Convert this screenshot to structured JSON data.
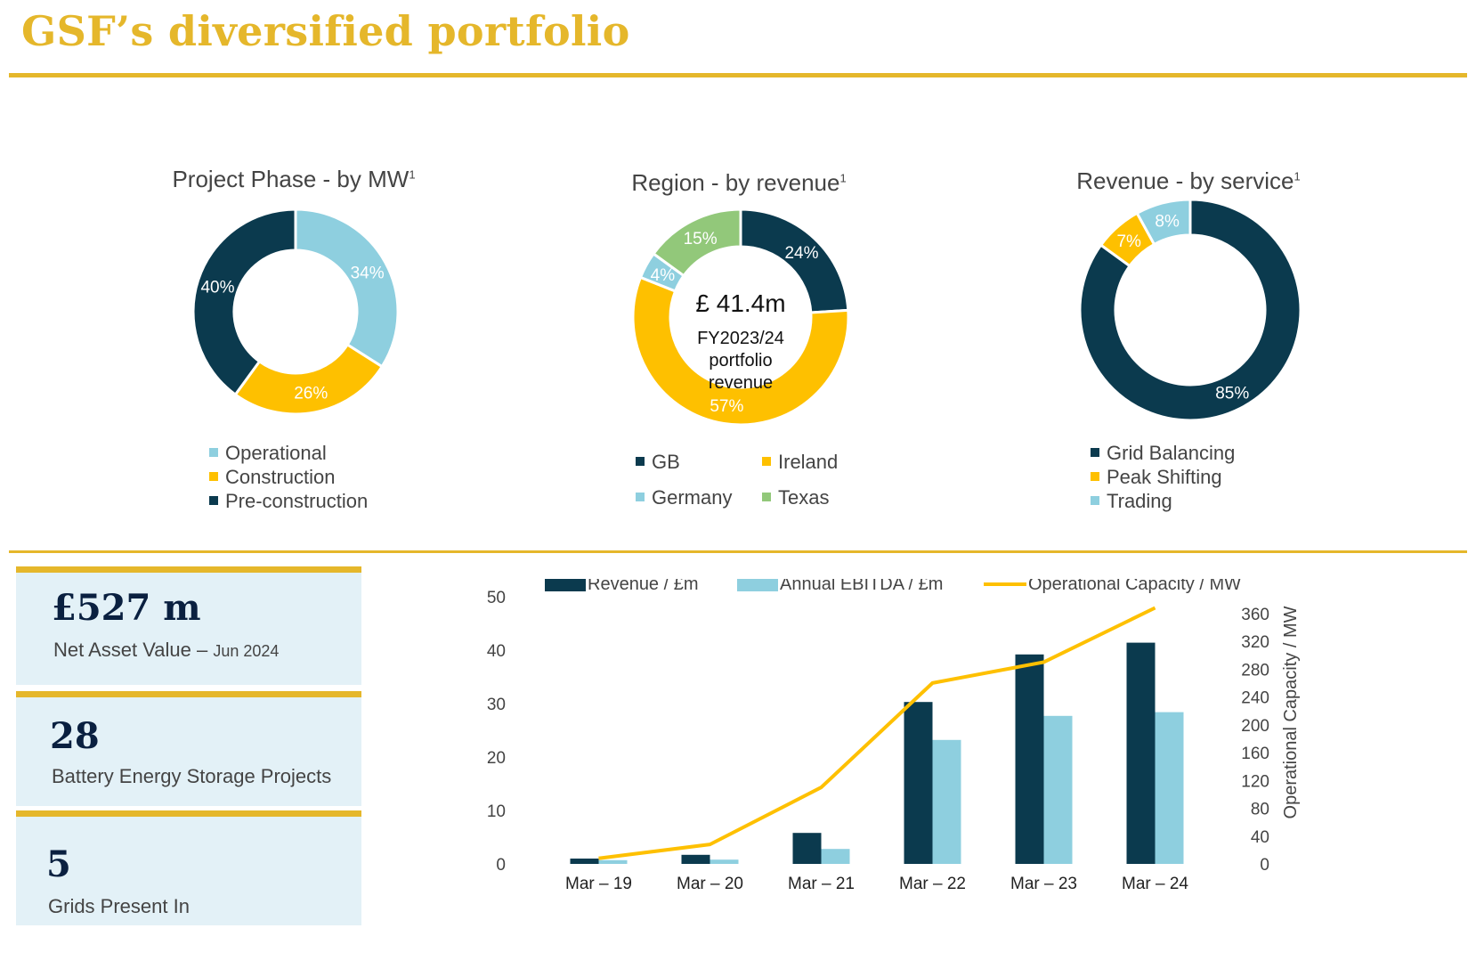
{
  "title": "GSF’s diversified portfolio",
  "colors": {
    "gold": "#e5b72b",
    "navy": "#0b3a4e",
    "light_blue": "#8ecfdf",
    "yellow": "#fec000",
    "green": "#92c87a"
  },
  "donuts": {
    "phase": {
      "title": "Project Phase - by MW",
      "footnote": "1",
      "legend": [
        {
          "label": "Operational",
          "color": "#8ecfdf"
        },
        {
          "label": "Construction",
          "color": "#fec000"
        },
        {
          "label": "Pre-construction",
          "color": "#0b3a4e"
        }
      ]
    },
    "region": {
      "title": "Region - by revenue",
      "footnote": "1",
      "center_value": "£ 41.4m",
      "center_line1": "FY2023/24",
      "center_line2": "portfolio",
      "center_line3": "revenue",
      "legend": [
        {
          "label": "GB",
          "color": "#0b3a4e"
        },
        {
          "label": "Ireland",
          "color": "#fec000"
        },
        {
          "label": "Germany",
          "color": "#8ecfdf"
        },
        {
          "label": "Texas",
          "color": "#92c87a"
        }
      ]
    },
    "service": {
      "title": "Revenue - by service",
      "footnote": "1",
      "legend": [
        {
          "label": "Grid Balancing",
          "color": "#0b3a4e"
        },
        {
          "label": "Peak Shifting",
          "color": "#fec000"
        },
        {
          "label": "Trading",
          "color": "#8ecfdf"
        }
      ]
    }
  },
  "kpis": [
    {
      "value": "£527 m",
      "label": "Net Asset Value – ",
      "label_small": "Jun 2024"
    },
    {
      "value": "28",
      "label": "Battery Energy Storage Projects",
      "label_small": ""
    },
    {
      "value": "5",
      "label": "Grids Present In",
      "label_small": ""
    }
  ],
  "chart_data": [
    {
      "type": "pie",
      "title": "Project Phase - by MW",
      "donut": true,
      "slices": [
        {
          "label": "Operational",
          "value": 34,
          "value_label": "34%",
          "color": "#8ecfdf"
        },
        {
          "label": "Construction",
          "value": 26,
          "value_label": "26%",
          "color": "#fec000"
        },
        {
          "label": "Pre-construction",
          "value": 40,
          "value_label": "40%",
          "color": "#0b3a4e"
        }
      ]
    },
    {
      "type": "pie",
      "title": "Region - by revenue",
      "donut": true,
      "slices": [
        {
          "label": "GB",
          "value": 24,
          "value_label": "24%",
          "color": "#0b3a4e"
        },
        {
          "label": "Ireland",
          "value": 57,
          "value_label": "57%",
          "color": "#fec000"
        },
        {
          "label": "Germany",
          "value": 4,
          "value_label": "4%",
          "color": "#8ecfdf"
        },
        {
          "label": "Texas",
          "value": 15,
          "value_label": "15%",
          "color": "#92c87a"
        }
      ]
    },
    {
      "type": "pie",
      "title": "Revenue - by service",
      "donut": true,
      "slices": [
        {
          "label": "Grid Balancing",
          "value": 85,
          "value_label": "85%",
          "color": "#0b3a4e"
        },
        {
          "label": "Peak Shifting",
          "value": 7,
          "value_label": "7%",
          "color": "#fec000"
        },
        {
          "label": "Trading",
          "value": 8,
          "value_label": "8%",
          "color": "#8ecfdf"
        }
      ]
    },
    {
      "type": "bar",
      "categories": [
        "Mar – 19",
        "Mar – 20",
        "Mar – 21",
        "Mar – 22",
        "Mar – 23",
        "Mar – 24"
      ],
      "series": [
        {
          "name": "Revenue / £m",
          "type": "bar",
          "axis": "left",
          "color": "#0b3a4e",
          "values": [
            1,
            1.7,
            5.8,
            30.3,
            39.2,
            41.4
          ]
        },
        {
          "name": "Annual EBITDA / £m",
          "type": "bar",
          "axis": "left",
          "color": "#8ecfdf",
          "values": [
            0.7,
            0.8,
            2.8,
            23.2,
            27.7,
            28.4
          ]
        },
        {
          "name": "Operational Capacity / MW",
          "type": "line",
          "axis": "right",
          "color": "#fec000",
          "values": [
            8,
            28,
            110,
            260,
            290,
            368
          ]
        }
      ],
      "ylabel": "Revenue / £m",
      "ylim": [
        0,
        50
      ],
      "yticks": [
        "0",
        "10",
        "20",
        "30",
        "40",
        "50"
      ],
      "y2label": "Operational Capacity / MW",
      "y2lim": [
        0,
        384
      ],
      "y2ticks": [
        "0",
        "40",
        "80",
        "120",
        "160",
        "200",
        "240",
        "280",
        "320",
        "360"
      ],
      "legend_position": "top"
    }
  ]
}
